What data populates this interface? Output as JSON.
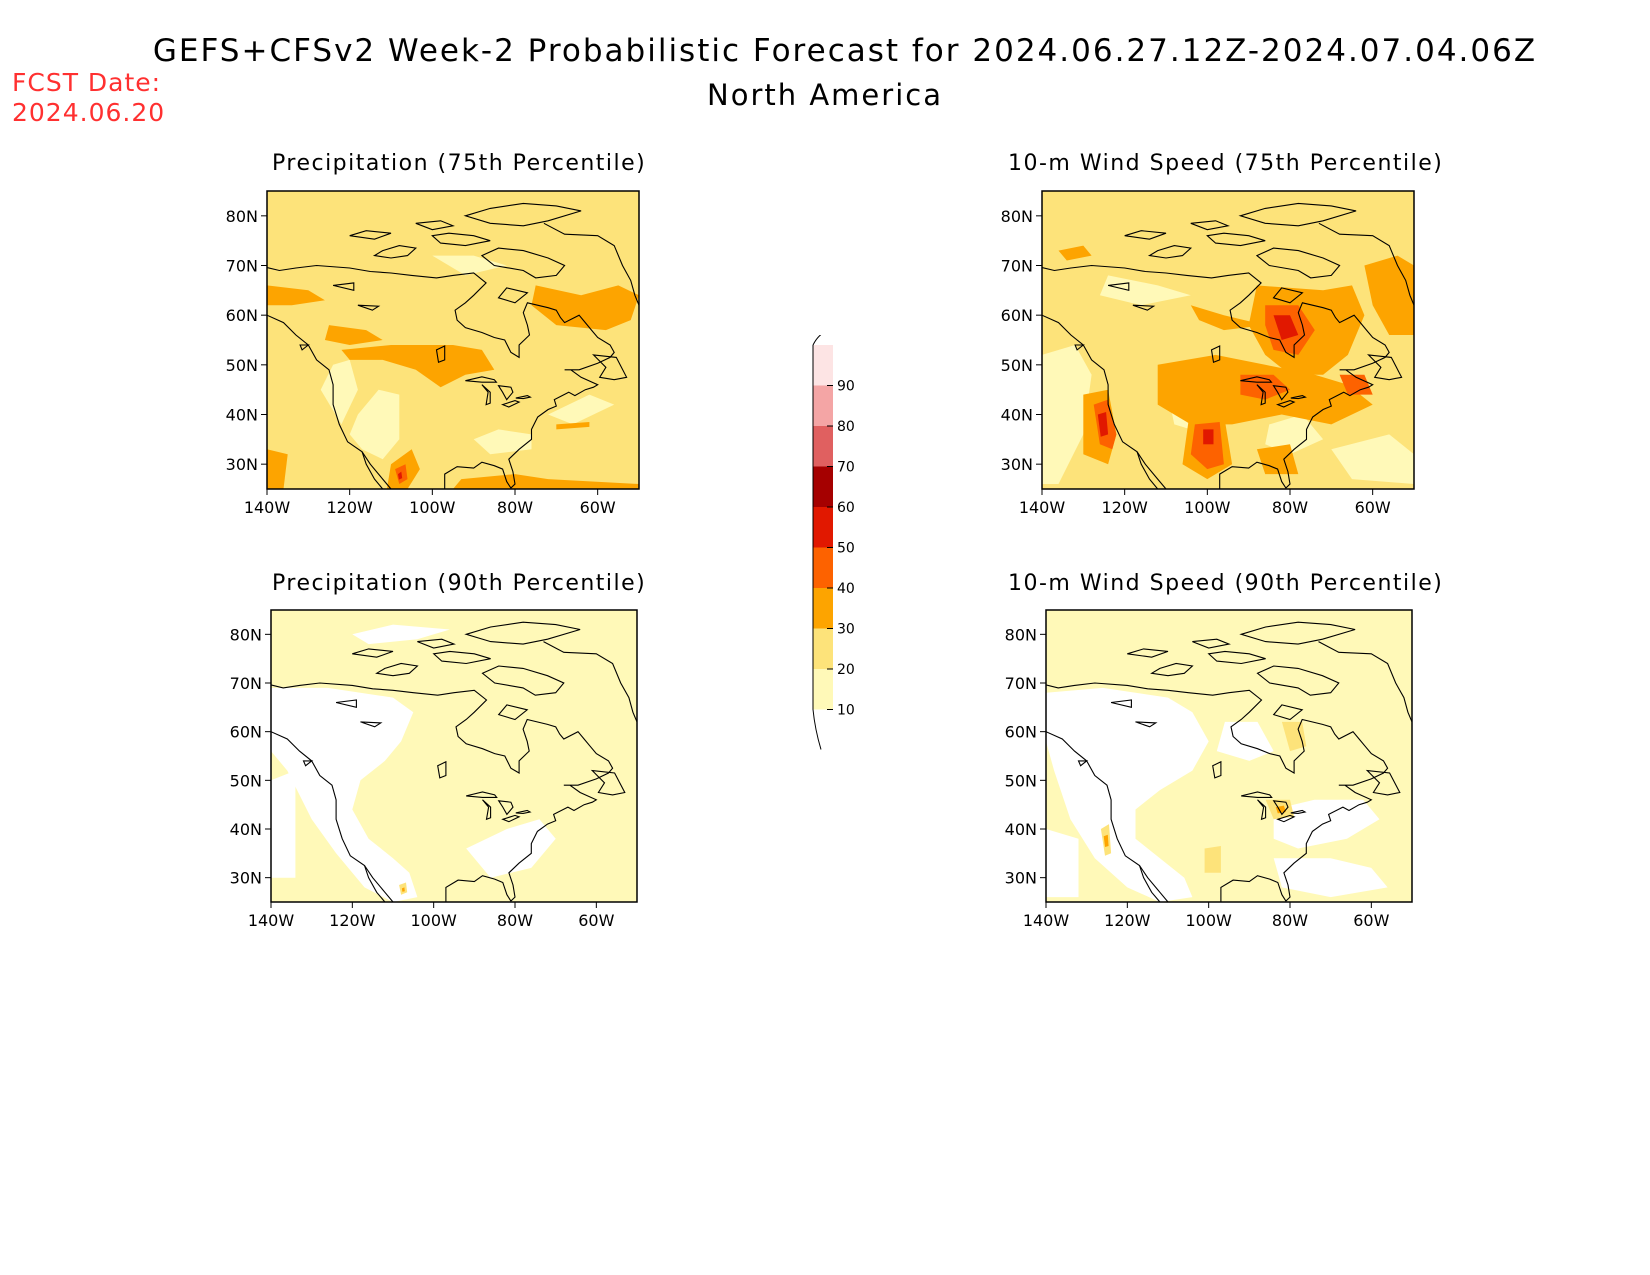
{
  "header": {
    "title": "GEFS+CFSv2 Week-2 Probabilistic Forecast for 2024.06.27.12Z-2024.07.04.06Z",
    "subtitle": "North America",
    "fcst_label": "FCST Date:",
    "fcst_date": "2024.06.20"
  },
  "colors": {
    "c10": "#fff9b8",
    "c20": "#fde37a",
    "c30": "#fda400",
    "c40": "#fd6200",
    "c50": "#e11800",
    "c60": "#a50000",
    "c70": "#e06060",
    "c80": "#f4a5a5",
    "c90": "#fde4e4",
    "coast": "#000000",
    "fcst_text": "#ff3030"
  },
  "panels": [
    {
      "id": "precip75",
      "title": "Precipitation (75th Percentile)"
    },
    {
      "id": "wind75",
      "title": "10-m Wind Speed (75th Percentile)"
    },
    {
      "id": "precip90",
      "title": "Precipitation (90th Percentile)"
    },
    {
      "id": "wind90",
      "title": "10-m Wind Speed (90th Percentile)"
    }
  ],
  "axes": {
    "lat_labels": [
      "80N",
      "70N",
      "60N",
      "50N",
      "40N",
      "30N"
    ],
    "lon_labels": [
      "140W",
      "120W",
      "100W",
      "80W",
      "60W"
    ]
  },
  "colorbar": {
    "ticks": [
      "10",
      "20",
      "30",
      "40",
      "50",
      "60",
      "70",
      "80",
      "90"
    ]
  }
}
